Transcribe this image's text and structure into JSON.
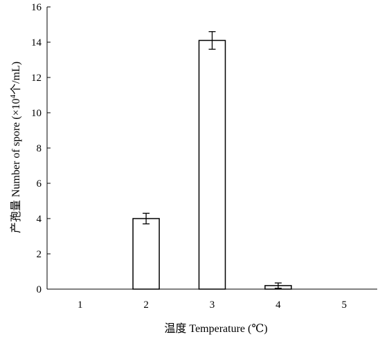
{
  "chart_data": {
    "type": "bar",
    "categories": [
      "1",
      "2",
      "3",
      "4",
      "5"
    ],
    "values": [
      0,
      4.0,
      14.1,
      0.2,
      0
    ],
    "errors": [
      0,
      0.3,
      0.5,
      0.15,
      0
    ],
    "xlabel": "温度 Temperature (℃)",
    "ylabel_prefix": "产孢量 Number of spore (×10",
    "ylabel_exp": "4",
    "ylabel_suffix": "个/mL)",
    "ylim": [
      0,
      16
    ],
    "yticks": [
      "0",
      "2",
      "4",
      "6",
      "8",
      "10",
      "12",
      "14",
      "16"
    ],
    "grid": false,
    "colors": {
      "bar_fill": "#ffffff",
      "bar_stroke": "#000000",
      "axis": "#000000"
    }
  }
}
